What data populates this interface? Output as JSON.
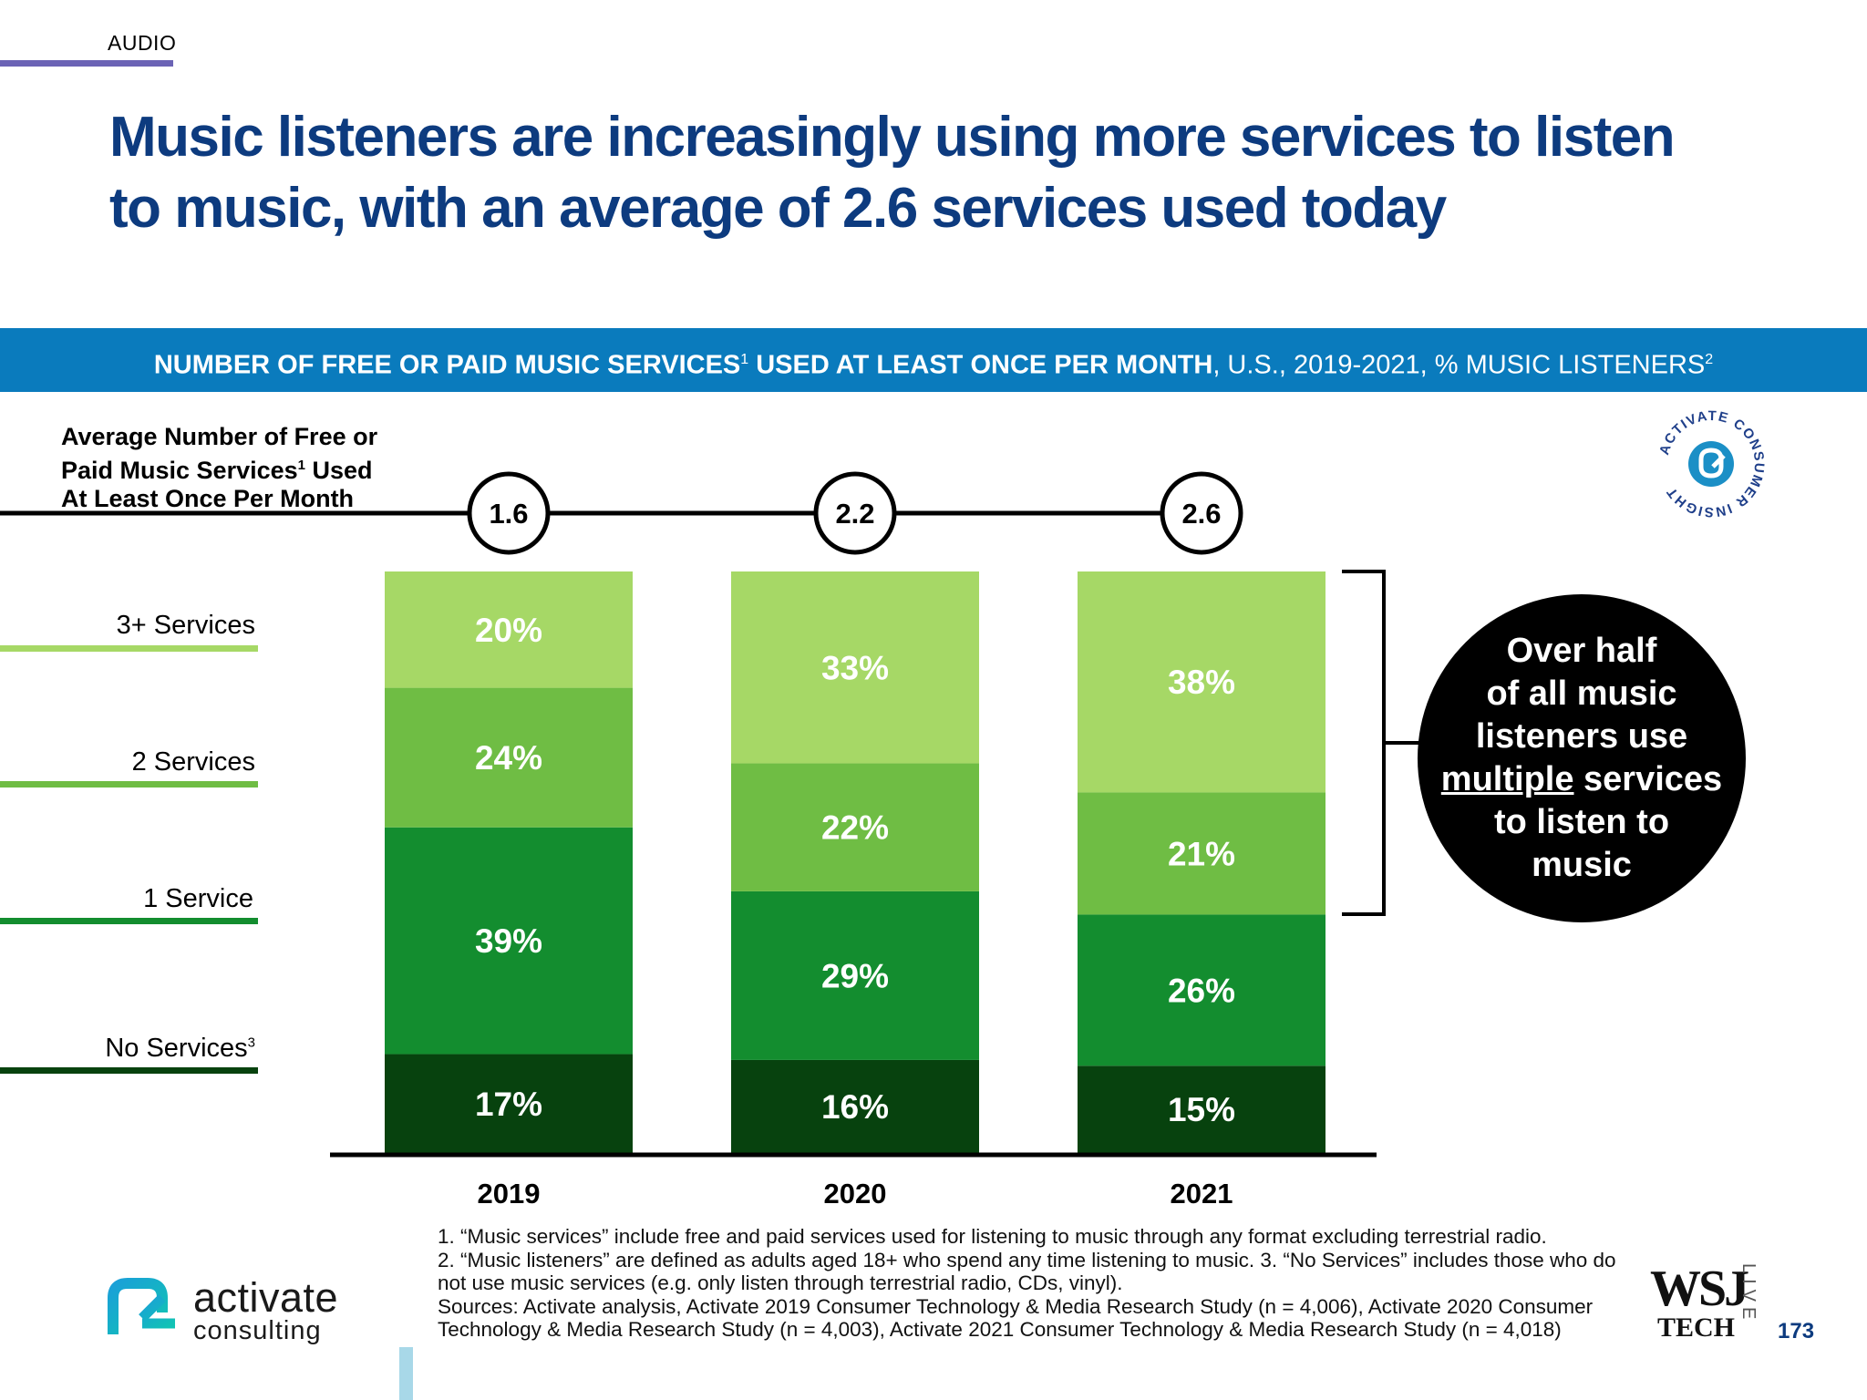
{
  "header": {
    "section": "AUDIO",
    "title": "Music listeners are increasingly using more services to listen to music, with an average of 2.6 services used today"
  },
  "banner": {
    "strong": "NUMBER OF FREE OR PAID MUSIC SERVICES",
    "sup1": "1",
    "strong2": " USED AT LEAST ONCE PER MONTH",
    "rest": ", U.S., 2019-2021, % MUSIC LISTENERS",
    "sup2": "2"
  },
  "avg_label": {
    "line1": "Average Number of Free or",
    "line2a": "Paid Music Services",
    "line2sup": "1",
    "line2b": " Used",
    "line3": "At Least Once Per Month"
  },
  "legend": {
    "three_plus": "3+ Services",
    "two": "2 Services",
    "one": "1 Service",
    "none": "No Services",
    "none_sup": "3"
  },
  "colors": {
    "three_plus": "#a6d866",
    "two": "#6fbd44",
    "one": "#138d2f",
    "none": "#07420e",
    "banner": "#0a7bbd",
    "title": "#0d3b7f"
  },
  "chart_data": {
    "type": "bar",
    "stacked": true,
    "categories": [
      "2019",
      "2020",
      "2021"
    ],
    "series": [
      {
        "name": "No Services",
        "values": [
          17,
          16,
          15
        ]
      },
      {
        "name": "1 Service",
        "values": [
          39,
          29,
          26
        ]
      },
      {
        "name": "2 Services",
        "values": [
          24,
          22,
          21
        ]
      },
      {
        "name": "3+ Services",
        "values": [
          20,
          33,
          38
        ]
      }
    ],
    "value_labels": [
      [
        "17%",
        "16%",
        "15%"
      ],
      [
        "39%",
        "29%",
        "26%"
      ],
      [
        "24%",
        "22%",
        "21%"
      ],
      [
        "20%",
        "33%",
        "38%"
      ]
    ],
    "averages": [
      "1.6",
      "2.2",
      "2.6"
    ],
    "ylim": [
      0,
      100
    ]
  },
  "callout": {
    "l1": "Over half",
    "l2": "of all music",
    "l3": "listeners use",
    "l4u": "multiple",
    "l4b": " services",
    "l5": "to listen to",
    "l6": "music"
  },
  "footnotes": {
    "n1": "1. “Music services” include free and paid services used for listening to music through any format excluding terrestrial radio.",
    "n2": "2. “Music listeners” are defined as adults aged 18+ who spend any time listening to music.  3. “No Services” includes those who do not use music services (e.g. only listen through terrestrial radio, CDs, vinyl).",
    "sources": "Sources: Activate analysis, Activate 2019 Consumer Technology & Media Research Study (n = 4,006), Activate 2020 Consumer Technology & Media Research Study (n = 4,003), Activate 2021 Consumer Technology & Media Research Study (n = 4,018)"
  },
  "branding": {
    "logo_line1": "activate",
    "logo_line2": "consulting",
    "badge_text": "ACTIVATE CONSUMER INSIGHT",
    "wsj_main": "WSJ",
    "wsj_sub": "TECH",
    "wsj_live": "LIVE",
    "page_number": "173"
  }
}
